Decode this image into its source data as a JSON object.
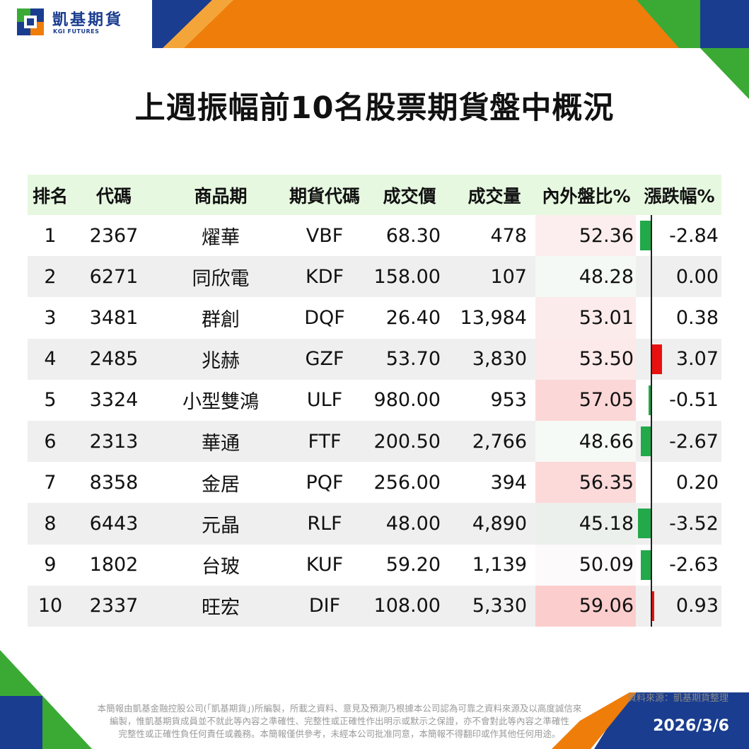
{
  "brand": {
    "name_cn": "凱基期貨",
    "name_en": "KGI FUTURES",
    "colors": {
      "blue": "#1a3d8f",
      "orange": "#ef7d0a",
      "green": "#3aaa35"
    }
  },
  "title": "上週振幅前10名股票期貨盤中概況",
  "table": {
    "headers": [
      "排名",
      "代碼",
      "商品期",
      "期貨代碼",
      "成交價",
      "成交量",
      "內外盤比%",
      "漲跌幅%"
    ],
    "rows": [
      {
        "rank": "1",
        "code": "2367",
        "name": "燿華",
        "fut": "VBF",
        "price": "68.30",
        "volume": "478",
        "ratio": "52.36",
        "chg": "-2.84",
        "chg_value": -2.84,
        "ratio_value": 52.36
      },
      {
        "rank": "2",
        "code": "6271",
        "name": "同欣電",
        "fut": "KDF",
        "price": "158.00",
        "volume": "107",
        "ratio": "48.28",
        "chg": "0.00",
        "chg_value": 0.0,
        "ratio_value": 48.28
      },
      {
        "rank": "3",
        "code": "3481",
        "name": "群創",
        "fut": "DQF",
        "price": "26.40",
        "volume": "13,984",
        "ratio": "53.01",
        "chg": "0.38",
        "chg_value": 0.38,
        "ratio_value": 53.01
      },
      {
        "rank": "4",
        "code": "2485",
        "name": "兆赫",
        "fut": "GZF",
        "price": "53.70",
        "volume": "3,830",
        "ratio": "53.50",
        "chg": "3.07",
        "chg_value": 3.07,
        "ratio_value": 53.5
      },
      {
        "rank": "5",
        "code": "3324",
        "name": "小型雙鴻",
        "fut": "ULF",
        "price": "980.00",
        "volume": "953",
        "ratio": "57.05",
        "chg": "-0.51",
        "chg_value": -0.51,
        "ratio_value": 57.05
      },
      {
        "rank": "6",
        "code": "2313",
        "name": "華通",
        "fut": "FTF",
        "price": "200.50",
        "volume": "2,766",
        "ratio": "48.66",
        "chg": "-2.67",
        "chg_value": -2.67,
        "ratio_value": 48.66
      },
      {
        "rank": "7",
        "code": "8358",
        "name": "金居",
        "fut": "PQF",
        "price": "256.00",
        "volume": "394",
        "ratio": "56.35",
        "chg": "0.20",
        "chg_value": 0.2,
        "ratio_value": 56.35
      },
      {
        "rank": "8",
        "code": "6443",
        "name": "元晶",
        "fut": "RLF",
        "price": "48.00",
        "volume": "4,890",
        "ratio": "45.18",
        "chg": "-3.52",
        "chg_value": -3.52,
        "ratio_value": 45.18
      },
      {
        "rank": "9",
        "code": "1802",
        "name": "台玻",
        "fut": "KUF",
        "price": "59.20",
        "volume": "1,139",
        "ratio": "50.09",
        "chg": "-2.63",
        "chg_value": -2.63,
        "ratio_value": 50.09
      },
      {
        "rank": "10",
        "code": "2337",
        "name": "旺宏",
        "fut": "DIF",
        "price": "108.00",
        "volume": "5,330",
        "ratio": "59.06",
        "chg": "0.93",
        "chg_value": 0.93,
        "ratio_value": 59.06
      }
    ],
    "colors": {
      "up": "#e8110f",
      "down": "#22a94a",
      "header_bg": "#e6f8e0"
    }
  },
  "source": "資料來源：凱基期貨整理",
  "disclaimer": [
    "本簡報由凱基金融控股公司(「凱基期貨」)所編製，所載之資料、意見及預測乃根據本公司認為可靠之資料來源及以高度誠信來",
    "編製，惟凱基期貨成員並不就此等內容之準確性、完整性或正確性作出明示或默示之保證，亦不會對此等內容之準確性",
    "完整性或正確性負任何責任或義務。本簡報僅供參考，未經本公司批准同意，本簡報不得翻印或作其他任何用途。"
  ],
  "date": "2026/3/6"
}
